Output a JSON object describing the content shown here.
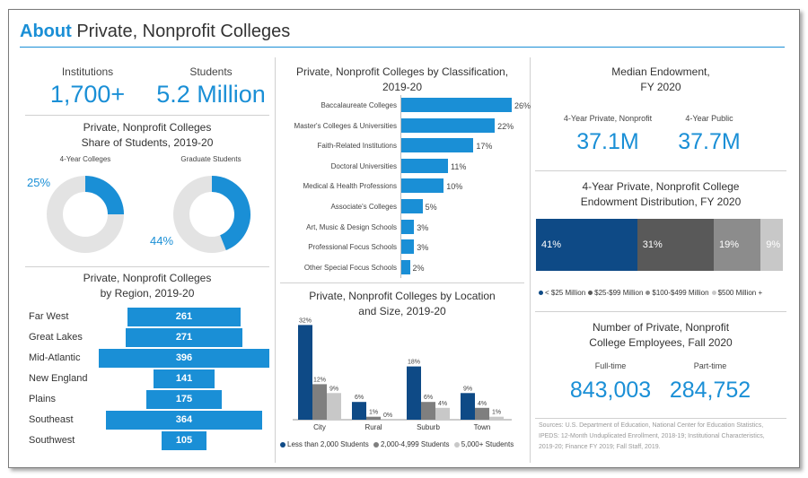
{
  "title": {
    "highlight": "About",
    "rest": " Private, Nonprofit Colleges"
  },
  "stats": {
    "institutions_label": "Institutions",
    "institutions_value": "1,700+",
    "students_label": "Students",
    "students_value": "5.2 Million"
  },
  "share": {
    "heading1": "Private, Nonprofit Colleges",
    "heading2": "Share of Students, 2019-20",
    "donut1_label": "4-Year Colleges",
    "donut1_value_text": "25%",
    "donut1_value": 25,
    "donut2_label": "Graduate Students",
    "donut2_value_text": "44%",
    "donut2_value": 44
  },
  "region": {
    "heading1": "Private, Nonprofit Colleges",
    "heading2": "by Region, 2019-20",
    "rows": [
      {
        "label": "Far West",
        "value": 261,
        "value_text": "261"
      },
      {
        "label": "Great Lakes",
        "value": 271,
        "value_text": "271"
      },
      {
        "label": "Mid-Atlantic",
        "value": 396,
        "value_text": "396"
      },
      {
        "label": "New England",
        "value": 141,
        "value_text": "141"
      },
      {
        "label": "Plains",
        "value": 175,
        "value_text": "175"
      },
      {
        "label": "Southeast",
        "value": 364,
        "value_text": "364"
      },
      {
        "label": "Southwest",
        "value": 105,
        "value_text": "105"
      }
    ]
  },
  "classification": {
    "heading1": "Private, Nonprofit Colleges by Classification,",
    "heading2": "2019-20",
    "rows": [
      {
        "label": "Baccalaureate Colleges",
        "value": 26,
        "value_text": "26%"
      },
      {
        "label": "Master's Colleges & Universities",
        "value": 22,
        "value_text": "22%"
      },
      {
        "label": "Faith-Related Institutions",
        "value": 17,
        "value_text": "17%"
      },
      {
        "label": "Doctoral Universities",
        "value": 11,
        "value_text": "11%"
      },
      {
        "label": "Medical & Health Professions",
        "value": 10,
        "value_text": "10%"
      },
      {
        "label": "Associate's Colleges",
        "value": 5,
        "value_text": "5%"
      },
      {
        "label": "Art, Music & Design Schools",
        "value": 3,
        "value_text": "3%"
      },
      {
        "label": "Professional Focus Schools",
        "value": 3,
        "value_text": "3%"
      },
      {
        "label": "Other Special Focus Schools",
        "value": 2,
        "value_text": "2%"
      }
    ]
  },
  "location": {
    "heading1": "Private, Nonprofit Colleges by Location",
    "heading2": "and Size, 2019-20",
    "categories": [
      "City",
      "Rural",
      "Suburb",
      "Town"
    ],
    "series": [
      {
        "name": "Less than 2,000 Students",
        "color": "#0e4a86",
        "values": [
          32,
          6,
          18,
          9
        ],
        "labels": [
          "32%",
          "6%",
          "18%",
          "9%"
        ]
      },
      {
        "name": "2,000-4,999 Students",
        "color": "#7f7f7f",
        "values": [
          12,
          1,
          6,
          4
        ],
        "labels": [
          "12%",
          "1%",
          "6%",
          "4%"
        ]
      },
      {
        "name": "5,000+ Students",
        "color": "#c8c8c8",
        "values": [
          9,
          0,
          4,
          1
        ],
        "labels": [
          "9%",
          "0%",
          "4%",
          "1%"
        ]
      }
    ]
  },
  "endowment": {
    "heading1": "Median Endowment,",
    "heading2": "FY 2020",
    "private_label": "4-Year Private, Nonprofit",
    "private_value": "37.1M",
    "public_label": "4-Year Public",
    "public_value": "37.7M"
  },
  "distribution": {
    "heading1": "4-Year Private, Nonprofit College",
    "heading2": "Endowment Distribution, FY 2020",
    "segments": [
      {
        "name": "< $25 Million",
        "value": 41,
        "value_text": "41%",
        "color": "#0e4a86"
      },
      {
        "name": "$25-$99 Million",
        "value": 31,
        "value_text": "31%",
        "color": "#595959"
      },
      {
        "name": "$100-$499 Million",
        "value": 19,
        "value_text": "19%",
        "color": "#8c8c8c"
      },
      {
        "name": "$500 Million +",
        "value": 9,
        "value_text": "9%",
        "color": "#c8c8c8"
      }
    ]
  },
  "employees": {
    "heading1": "Number of Private, Nonprofit",
    "heading2": "College Employees, Fall 2020",
    "fulltime_label": "Full-time",
    "fulltime_value": "843,003",
    "parttime_label": "Part-time",
    "parttime_value": "284,752"
  },
  "sources": {
    "line1": "Sources: U.S. Department of Education, National Center for Education Statistics,",
    "line2": "IPEDS: 12-Month Unduplicated Enrollment, 2018-19; Institutional Characteristics,",
    "line3": "2019-20; Finance FY 2019; Fall Staff, 2019."
  },
  "chart_data": [
    {
      "type": "pie",
      "title": "Private, Nonprofit Colleges Share of Students, 2019-20",
      "categories": [
        "4-Year Colleges"
      ],
      "values": [
        25
      ]
    },
    {
      "type": "pie",
      "categories": [
        "Graduate Students"
      ],
      "values": [
        44
      ]
    },
    {
      "type": "bar",
      "title": "Private, Nonprofit Colleges by Region, 2019-20",
      "categories": [
        "Far West",
        "Great Lakes",
        "Mid-Atlantic",
        "New England",
        "Plains",
        "Southeast",
        "Southwest"
      ],
      "values": [
        261,
        271,
        396,
        141,
        175,
        364,
        105
      ]
    },
    {
      "type": "bar",
      "title": "Private, Nonprofit Colleges by Classification, 2019-20",
      "categories": [
        "Baccalaureate Colleges",
        "Master's Colleges & Universities",
        "Faith-Related Institutions",
        "Doctoral Universities",
        "Medical & Health Professions",
        "Associate's Colleges",
        "Art, Music & Design Schools",
        "Professional Focus Schools",
        "Other Special Focus Schools"
      ],
      "values": [
        26,
        22,
        17,
        11,
        10,
        5,
        3,
        3,
        2
      ]
    },
    {
      "type": "bar",
      "title": "Private, Nonprofit Colleges by Location and Size, 2019-20",
      "categories": [
        "City",
        "Rural",
        "Suburb",
        "Town"
      ],
      "series": [
        {
          "name": "Less than 2,000 Students",
          "values": [
            32,
            6,
            18,
            9
          ]
        },
        {
          "name": "2,000-4,999 Students",
          "values": [
            12,
            1,
            6,
            4
          ]
        },
        {
          "name": "5,000+ Students",
          "values": [
            9,
            0,
            4,
            1
          ]
        }
      ]
    },
    {
      "type": "bar",
      "title": "4-Year Private, Nonprofit College Endowment Distribution, FY 2020",
      "categories": [
        "< $25 Million",
        "$25-$99 Million",
        "$100-$499 Million",
        "$500 Million +"
      ],
      "values": [
        41,
        31,
        19,
        9
      ]
    }
  ]
}
